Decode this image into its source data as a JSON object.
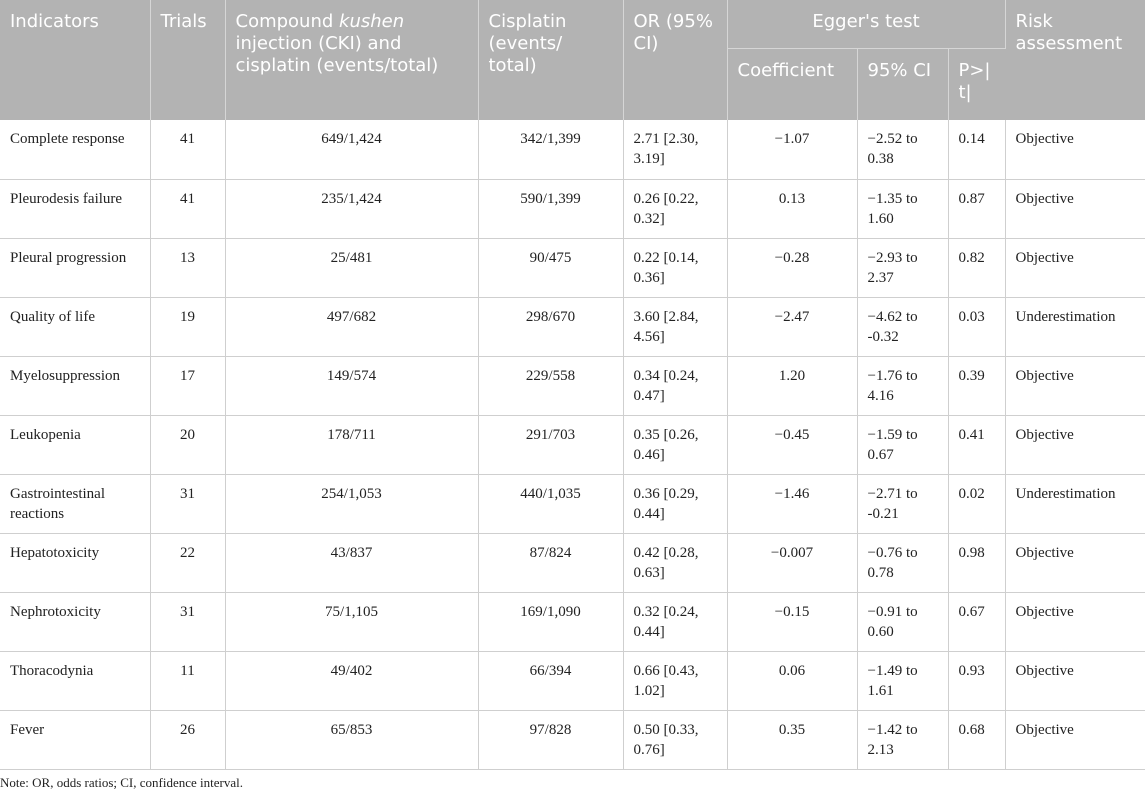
{
  "headers": {
    "indicators": "Indicators",
    "trials": "Trials",
    "cki_prefix": "Compound ",
    "cki_italic": "kushen",
    "cki_suffix": " injection (CKI) and cisplatin (events/total)",
    "cisplatin": "Cisplatin (events/ total)",
    "or": "OR (95% CI)",
    "egger": "Egger's test",
    "coefficient": "Coefficient",
    "ci95": "95% CI",
    "p": "P>| t|",
    "risk": "Risk assessment"
  },
  "rows": [
    {
      "indicator": "Complete response",
      "trials": "41",
      "cki": "649/1,424",
      "cis": "342/1,399",
      "or": "2.71 [2.30, 3.19]",
      "coef": "−1.07",
      "ci": "−2.52 to 0.38",
      "p": "0.14",
      "risk": "Objective"
    },
    {
      "indicator": "Pleurodesis failure",
      "trials": "41",
      "cki": "235/1,424",
      "cis": "590/1,399",
      "or": "0.26 [0.22, 0.32]",
      "coef": "0.13",
      "ci": "−1.35 to 1.60",
      "p": "0.87",
      "risk": "Objective"
    },
    {
      "indicator": "Pleural progression",
      "trials": "13",
      "cki": "25/481",
      "cis": "90/475",
      "or": "0.22 [0.14, 0.36]",
      "coef": "−0.28",
      "ci": "−2.93 to 2.37",
      "p": "0.82",
      "risk": "Objective"
    },
    {
      "indicator": "Quality of life",
      "trials": "19",
      "cki": "497/682",
      "cis": "298/670",
      "or": "3.60 [2.84, 4.56]",
      "coef": "−2.47",
      "ci": "−4.62 to -0.32",
      "p": "0.03",
      "risk": "Underestimation"
    },
    {
      "indicator": "Myelosuppression",
      "trials": "17",
      "cki": "149/574",
      "cis": "229/558",
      "or": "0.34 [0.24, 0.47]",
      "coef": "1.20",
      "ci": "−1.76 to 4.16",
      "p": "0.39",
      "risk": "Objective"
    },
    {
      "indicator": "Leukopenia",
      "trials": "20",
      "cki": "178/711",
      "cis": "291/703",
      "or": "0.35 [0.26, 0.46]",
      "coef": "−0.45",
      "ci": "−1.59 to 0.67",
      "p": "0.41",
      "risk": "Objective"
    },
    {
      "indicator": "Gastrointestinal reactions",
      "trials": "31",
      "cki": "254/1,053",
      "cis": "440/1,035",
      "or": "0.36 [0.29, 0.44]",
      "coef": "−1.46",
      "ci": "−2.71 to -0.21",
      "p": "0.02",
      "risk": "Underestimation"
    },
    {
      "indicator": "Hepatotoxicity",
      "trials": "22",
      "cki": "43/837",
      "cis": "87/824",
      "or": "0.42 [0.28, 0.63]",
      "coef": "−0.007",
      "ci": "−0.76 to 0.78",
      "p": "0.98",
      "risk": "Objective"
    },
    {
      "indicator": "Nephrotoxicity",
      "trials": "31",
      "cki": "75/1,105",
      "cis": "169/1,090",
      "or": "0.32 [0.24, 0.44]",
      "coef": "−0.15",
      "ci": "−0.91 to 0.60",
      "p": "0.67",
      "risk": "Objective"
    },
    {
      "indicator": "Thoracodynia",
      "trials": "11",
      "cki": "49/402",
      "cis": "66/394",
      "or": "0.66 [0.43, 1.02]",
      "coef": "0.06",
      "ci": "−1.49 to 1.61",
      "p": "0.93",
      "risk": "Objective"
    },
    {
      "indicator": "Fever",
      "trials": "26",
      "cki": "65/853",
      "cis": "97/828",
      "or": "0.50 [0.33, 0.76]",
      "coef": "0.35",
      "ci": "−1.42 to 2.13",
      "p": "0.68",
      "risk": "Objective"
    }
  ],
  "note": "Note: OR, odds ratios; CI, confidence interval.",
  "colors": {
    "header_bg": "#b3b3b3",
    "header_text": "#ffffff",
    "grid": "#cfcfcf"
  }
}
